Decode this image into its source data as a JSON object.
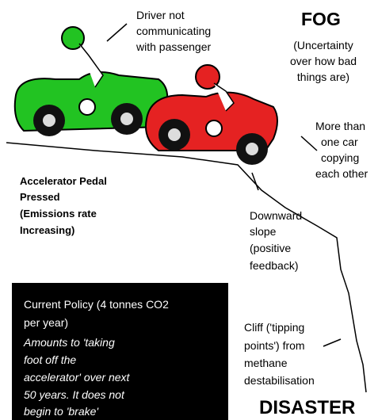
{
  "labels": {
    "driver": {
      "lines": [
        "Driver not",
        "communicating",
        "with passenger"
      ]
    },
    "fog": {
      "title": "FOG",
      "lines": [
        "(Uncertainty",
        "over how bad",
        "things are)"
      ]
    },
    "copying": {
      "lines": [
        "More than",
        "one car",
        "copying",
        "each other"
      ]
    },
    "accelerator": {
      "lines": [
        "Accelerator Pedal",
        "Pressed",
        "(Emissions rate",
        "Increasing)"
      ]
    },
    "slope": {
      "lines": [
        "Downward",
        "slope",
        "(positive",
        "feedback)"
      ]
    },
    "policy": {
      "lines": [
        "Current Policy (4 tonnes CO2",
        "per year)"
      ],
      "note_lines": [
        "Amounts to 'taking",
        "foot off the",
        "accelerator' over next",
        "50 years. It does not",
        "begin to 'brake'"
      ]
    },
    "cliff": {
      "lines": [
        "Cliff ('tipping",
        "points') from",
        "methane",
        "destabilisation"
      ]
    },
    "disaster": "DISASTER"
  }
}
